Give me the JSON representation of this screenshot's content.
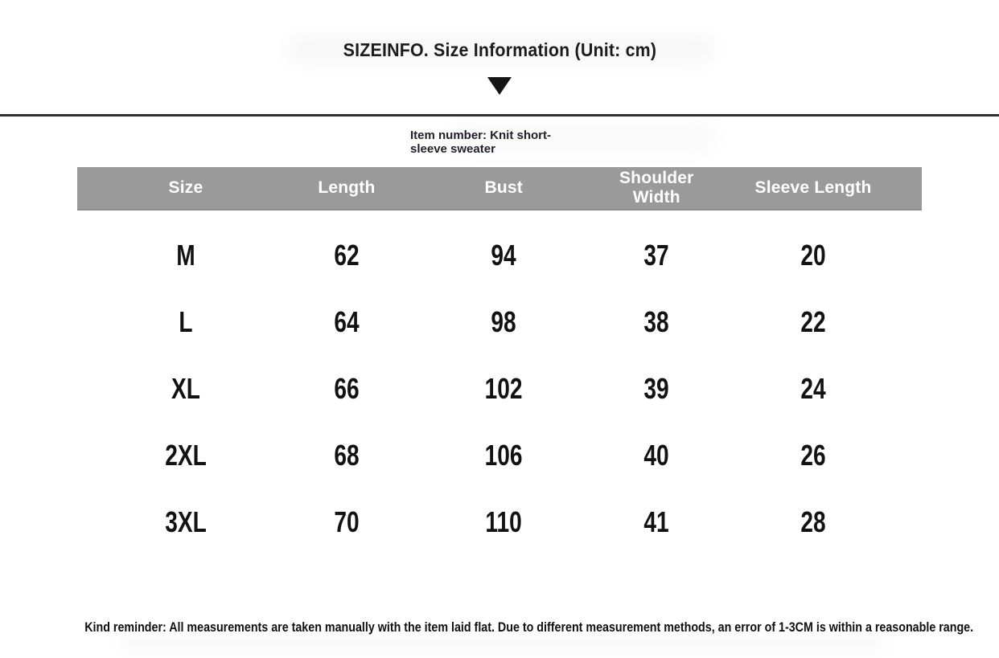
{
  "header": {
    "title": "SIZEINFO. Size Information (Unit: cm)"
  },
  "item_number": {
    "line1": "Item number: Knit short-",
    "line2": "sleeve sweater"
  },
  "chart_data": {
    "type": "table",
    "title": "SIZEINFO. Size Information (Unit: cm)",
    "unit": "cm",
    "columns": [
      "Size",
      "Length",
      "Bust",
      "Shoulder Width",
      "Sleeve Length"
    ],
    "rows": [
      [
        "M",
        "62",
        "94",
        "37",
        "20"
      ],
      [
        "L",
        "64",
        "98",
        "38",
        "22"
      ],
      [
        "XL",
        "66",
        "102",
        "39",
        "24"
      ],
      [
        "2XL",
        "68",
        "106",
        "40",
        "26"
      ],
      [
        "3XL",
        "70",
        "110",
        "41",
        "28"
      ]
    ]
  },
  "footer": {
    "reminder": "Kind reminder: All measurements are taken manually with the item laid flat. Due to different measurement methods, an error of 1-3CM is within a reasonable range."
  },
  "colors": {
    "header_band_bg": "#9a9a9a",
    "header_band_text": "#ffffff",
    "divider": "#303030",
    "body_text": "#121212"
  }
}
